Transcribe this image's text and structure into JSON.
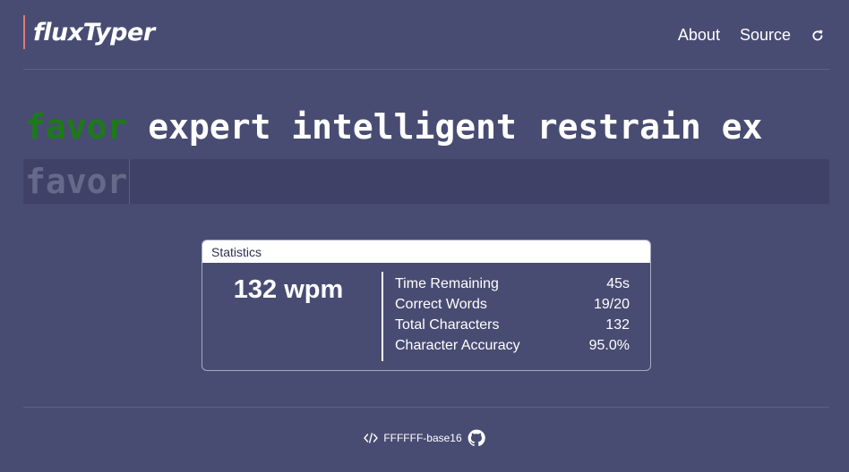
{
  "header": {
    "brand": "fluxTyper",
    "nav": {
      "about": "About",
      "source": "Source",
      "refresh_icon": "refresh-icon"
    }
  },
  "typing": {
    "words": [
      {
        "text": "favor",
        "state": "done"
      },
      {
        "text": "expert",
        "state": "pending"
      },
      {
        "text": "intelligent",
        "state": "pending"
      },
      {
        "text": "restrain",
        "state": "pending"
      },
      {
        "text": "ex",
        "state": "pending"
      }
    ],
    "typed": "favor"
  },
  "stats": {
    "title": "Statistics",
    "wpm": "132 wpm",
    "rows": [
      {
        "label": "Time Remaining",
        "value": "45s"
      },
      {
        "label": "Correct Words",
        "value": "19/20"
      },
      {
        "label": "Total Characters",
        "value": "132"
      },
      {
        "label": "Character Accuracy",
        "value": "95.0%"
      }
    ]
  },
  "footer": {
    "theme": "FFFFFF-base16",
    "code_icon": "code-icon",
    "github_icon": "github-icon"
  },
  "colors": {
    "background": "#484c72",
    "input_background": "#3f4266",
    "correct_word": "#1d7a18",
    "brand_accent": "#e07a7a"
  }
}
